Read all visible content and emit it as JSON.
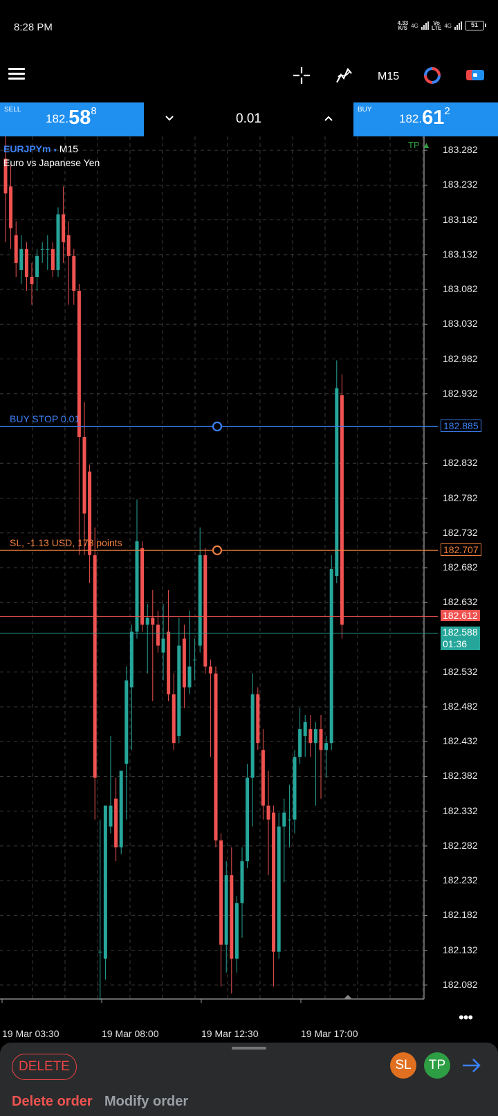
{
  "status": {
    "time": "8:28 PM",
    "speed_value": "4.33",
    "speed_unit": "K/S",
    "net1": "4G",
    "volte_top": "Vo",
    "volte_bottom": "LTE",
    "net2": "4G",
    "battery": "51"
  },
  "toolbar": {
    "menu_icon": "hamburger-icon",
    "crosshair_icon": "crosshair-icon",
    "indicators_icon": "indicators-icon",
    "timeframe": "M15",
    "objects_icon": "objects-icon",
    "trade_icon": "trade-icon"
  },
  "trade_panel": {
    "sell_label": "SELL",
    "sell_price_small": "182.",
    "sell_price_big": "58",
    "sell_price_sup": "8",
    "buy_label": "BUY",
    "buy_price_small": "182.",
    "buy_price_big": "61",
    "buy_price_sup": "2",
    "lot": "0.01",
    "dec_icon": "chevron-down-icon",
    "inc_icon": "chevron-up-icon",
    "colors": {
      "panel": "#1f8ff0"
    }
  },
  "chart": {
    "symbol": "EURJPYm",
    "caret": "▾",
    "timeframe": "M15",
    "description": "Euro vs Japanese Yen",
    "tp_label": "TP",
    "buy_stop_label": "BUY STOP 0.01",
    "buy_stop_price": "182.885",
    "sl_label": "SL, -1.13 USD, 178 points",
    "sl_price": "182.707",
    "ask_price": "182.612",
    "bid_price": "182.588",
    "bar_timer": "01:36",
    "more_label": "•••",
    "colors": {
      "bull": "#26a69a",
      "bear": "#ef5350",
      "buy_stop": "#3b82f6",
      "sl": "#f0803c",
      "ask": "#ef5350",
      "bid": "#26a69a"
    }
  },
  "chart_data": {
    "type": "candlestick",
    "symbol": "EURJPYm",
    "timeframe": "M15",
    "y_ticks": [
      "183.282",
      "183.232",
      "183.182",
      "183.132",
      "183.082",
      "183.032",
      "182.982",
      "182.932",
      "182.832",
      "182.782",
      "182.732",
      "182.682",
      "182.632",
      "182.532",
      "182.482",
      "182.432",
      "182.382",
      "182.332",
      "182.282",
      "182.232",
      "182.182",
      "182.132",
      "182.082"
    ],
    "x_ticks": [
      "19 Mar 03:30",
      "19 Mar 08:00",
      "19 Mar 12:30",
      "19 Mar 17:00"
    ],
    "ylim": [
      182.062,
      183.302
    ],
    "candles": [
      {
        "o": 183.27,
        "h": 183.305,
        "l": 183.15,
        "c": 183.22
      },
      {
        "o": 183.23,
        "h": 183.26,
        "l": 183.14,
        "c": 183.17
      },
      {
        "o": 183.16,
        "h": 183.18,
        "l": 183.1,
        "c": 183.12
      },
      {
        "o": 183.11,
        "h": 183.16,
        "l": 183.09,
        "c": 183.14
      },
      {
        "o": 183.14,
        "h": 183.15,
        "l": 183.08,
        "c": 183.1
      },
      {
        "o": 183.1,
        "h": 183.12,
        "l": 183.06,
        "c": 183.09
      },
      {
        "o": 183.1,
        "h": 183.14,
        "l": 183.08,
        "c": 183.13
      },
      {
        "o": 183.14,
        "h": 183.15,
        "l": 183.12,
        "c": 183.14
      },
      {
        "o": 183.14,
        "h": 183.16,
        "l": 183.11,
        "c": 183.14
      },
      {
        "o": 183.14,
        "h": 183.15,
        "l": 183.1,
        "c": 183.11
      },
      {
        "o": 183.11,
        "h": 183.2,
        "l": 183.1,
        "c": 183.19
      },
      {
        "o": 183.19,
        "h": 183.23,
        "l": 183.12,
        "c": 183.15
      },
      {
        "o": 183.16,
        "h": 183.18,
        "l": 183.06,
        "c": 183.13
      },
      {
        "o": 183.13,
        "h": 183.14,
        "l": 183.06,
        "c": 183.08
      },
      {
        "o": 183.08,
        "h": 183.09,
        "l": 182.7,
        "c": 182.87
      },
      {
        "o": 182.87,
        "h": 182.92,
        "l": 182.7,
        "c": 182.76
      },
      {
        "o": 182.82,
        "h": 182.83,
        "l": 182.66,
        "c": 182.7
      },
      {
        "o": 182.7,
        "h": 182.74,
        "l": 182.32,
        "c": 182.38
      },
      {
        "o": 182.13,
        "h": 182.32,
        "l": 182.06,
        "c": 182.13
      },
      {
        "o": 182.12,
        "h": 182.34,
        "l": 182.09,
        "c": 182.34
      },
      {
        "o": 182.31,
        "h": 182.44,
        "l": 182.3,
        "c": 182.34
      },
      {
        "o": 182.35,
        "h": 182.38,
        "l": 182.26,
        "c": 182.28
      },
      {
        "o": 182.28,
        "h": 182.39,
        "l": 182.27,
        "c": 182.39
      },
      {
        "o": 182.4,
        "h": 182.54,
        "l": 182.32,
        "c": 182.52
      },
      {
        "o": 182.51,
        "h": 182.6,
        "l": 182.42,
        "c": 182.59
      },
      {
        "o": 182.59,
        "h": 182.78,
        "l": 182.58,
        "c": 182.72
      },
      {
        "o": 182.71,
        "h": 182.72,
        "l": 182.59,
        "c": 182.6
      },
      {
        "o": 182.6,
        "h": 182.63,
        "l": 182.53,
        "c": 182.61
      },
      {
        "o": 182.61,
        "h": 182.65,
        "l": 182.49,
        "c": 182.6
      },
      {
        "o": 182.6,
        "h": 182.62,
        "l": 182.56,
        "c": 182.57
      },
      {
        "o": 182.56,
        "h": 182.63,
        "l": 182.52,
        "c": 182.58
      },
      {
        "o": 182.59,
        "h": 182.65,
        "l": 182.49,
        "c": 182.5
      },
      {
        "o": 182.5,
        "h": 182.53,
        "l": 182.42,
        "c": 182.43
      },
      {
        "o": 182.44,
        "h": 182.61,
        "l": 182.43,
        "c": 182.57
      },
      {
        "o": 182.58,
        "h": 182.6,
        "l": 182.48,
        "c": 182.51
      },
      {
        "o": 182.51,
        "h": 182.62,
        "l": 182.5,
        "c": 182.54
      },
      {
        "o": 182.55,
        "h": 182.58,
        "l": 182.52,
        "c": 182.55
      },
      {
        "o": 182.57,
        "h": 182.74,
        "l": 182.56,
        "c": 182.7
      },
      {
        "o": 182.7,
        "h": 182.71,
        "l": 182.53,
        "c": 182.54
      },
      {
        "o": 182.54,
        "h": 182.55,
        "l": 182.41,
        "c": 182.53
      },
      {
        "o": 182.53,
        "h": 182.54,
        "l": 182.28,
        "c": 182.29
      },
      {
        "o": 182.29,
        "h": 182.3,
        "l": 182.08,
        "c": 182.14
      },
      {
        "o": 182.14,
        "h": 182.26,
        "l": 182.1,
        "c": 182.24
      },
      {
        "o": 182.24,
        "h": 182.28,
        "l": 182.07,
        "c": 182.12
      },
      {
        "o": 182.12,
        "h": 182.21,
        "l": 182.1,
        "c": 182.2
      },
      {
        "o": 182.2,
        "h": 182.28,
        "l": 182.15,
        "c": 182.26
      },
      {
        "o": 182.26,
        "h": 182.4,
        "l": 182.25,
        "c": 182.38
      },
      {
        "o": 182.38,
        "h": 182.53,
        "l": 182.31,
        "c": 182.5
      },
      {
        "o": 182.5,
        "h": 182.51,
        "l": 182.42,
        "c": 182.43
      },
      {
        "o": 182.42,
        "h": 182.45,
        "l": 182.32,
        "c": 182.34
      },
      {
        "o": 182.34,
        "h": 182.39,
        "l": 182.24,
        "c": 182.32
      },
      {
        "o": 182.33,
        "h": 182.34,
        "l": 182.08,
        "c": 182.13
      },
      {
        "o": 182.13,
        "h": 182.33,
        "l": 182.12,
        "c": 182.31
      },
      {
        "o": 182.31,
        "h": 182.35,
        "l": 182.23,
        "c": 182.33
      },
      {
        "o": 182.32,
        "h": 182.37,
        "l": 182.28,
        "c": 182.32
      },
      {
        "o": 182.32,
        "h": 182.42,
        "l": 182.3,
        "c": 182.41
      },
      {
        "o": 182.41,
        "h": 182.48,
        "l": 182.4,
        "c": 182.45
      },
      {
        "o": 182.44,
        "h": 182.47,
        "l": 182.41,
        "c": 182.46
      },
      {
        "o": 182.45,
        "h": 182.47,
        "l": 182.41,
        "c": 182.43
      },
      {
        "o": 182.43,
        "h": 182.46,
        "l": 182.34,
        "c": 182.45
      },
      {
        "o": 182.45,
        "h": 182.47,
        "l": 182.35,
        "c": 182.42
      },
      {
        "o": 182.42,
        "h": 182.44,
        "l": 182.38,
        "c": 182.43
      },
      {
        "o": 182.43,
        "h": 182.7,
        "l": 182.42,
        "c": 182.68
      },
      {
        "o": 182.67,
        "h": 182.98,
        "l": 182.66,
        "c": 182.94
      },
      {
        "o": 182.93,
        "h": 182.96,
        "l": 182.58,
        "c": 182.6
      }
    ],
    "levels": [
      {
        "name": "BUY STOP 0.01",
        "value": 182.885
      },
      {
        "name": "SL, -1.13 USD, 178 points",
        "value": 182.707
      },
      {
        "name": "ask",
        "value": 182.612
      },
      {
        "name": "bid",
        "value": 182.588
      }
    ]
  },
  "sheet": {
    "delete_label": "DELETE",
    "sl_label": "SL",
    "tp_label": "TP",
    "arrow_icon": "arrow-right-icon",
    "tab_delete": "Delete order",
    "tab_modify": "Modify order",
    "colors": {
      "sl_bg": "#e07020",
      "tp_bg": "#2e9e44",
      "accent": "#3b82f6"
    }
  }
}
